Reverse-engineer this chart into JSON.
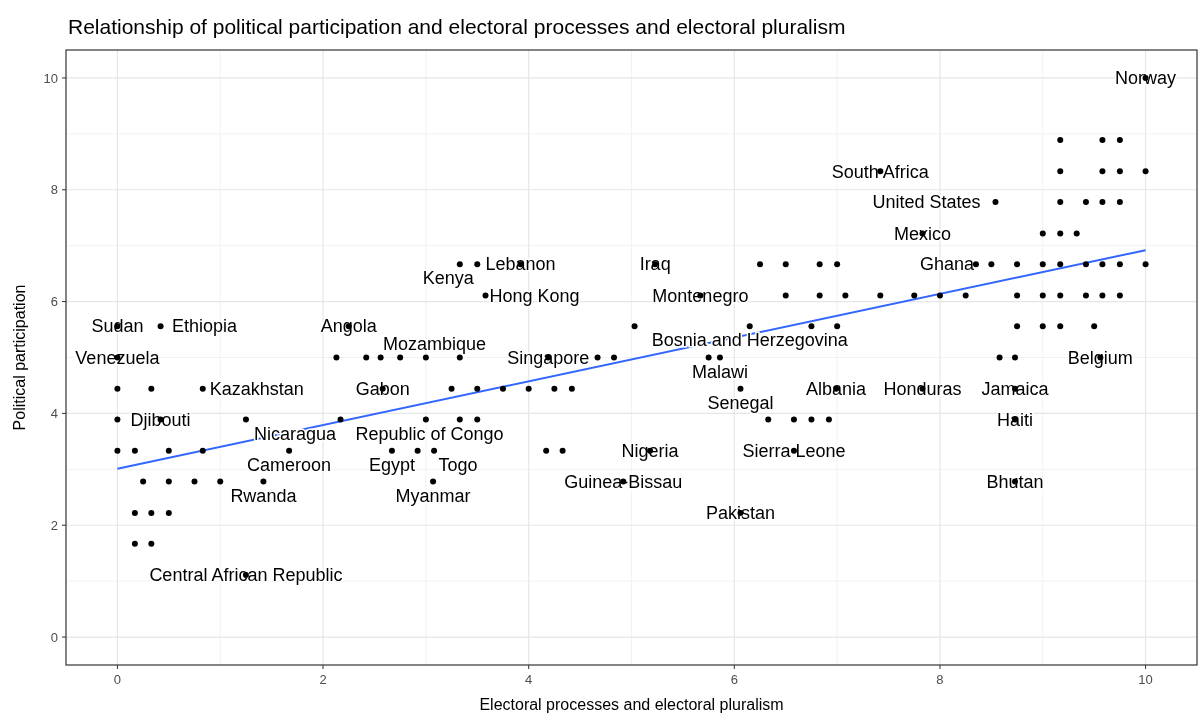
{
  "chart_data": {
    "type": "scatter",
    "title": "Relationship of political participation and electoral processes and electoral pluralism",
    "xlabel": "Electoral processes and electoral pluralism",
    "ylabel": "Political participation",
    "xlim": [
      -0.5,
      10.5
    ],
    "ylim": [
      -0.5,
      10.5
    ],
    "xticks": [
      0,
      2,
      4,
      6,
      8,
      10
    ],
    "yticks": [
      0,
      2,
      4,
      6,
      8,
      10
    ],
    "grid": true,
    "marker": "circle",
    "series": [
      {
        "color": "#000000",
        "x": [
          10,
          7.42,
          7.83,
          8.54,
          8.35,
          6.06,
          5.23,
          3.92,
          3.33,
          3.5,
          3.58,
          5.67,
          6.15,
          5.03,
          4.19,
          5.75,
          5.86,
          6.06,
          6.99,
          7.83,
          8.73,
          8.73,
          8.73,
          6.58,
          5.18,
          4.92,
          8.73,
          9.56,
          0,
          0.42,
          2.25,
          0,
          0.83,
          2.58,
          0,
          0.42,
          1.25,
          2.17,
          1.67,
          1.42,
          1.25,
          2.13,
          2.56,
          2.67,
          3.08,
          3.07,
          9.17,
          9.58,
          9.75,
          9.17,
          9.58,
          9.75,
          10,
          9.17,
          9.42,
          9.58,
          9.75,
          9,
          9.17,
          9.33,
          8.5,
          8.75,
          9,
          9.17,
          9.42,
          9.58,
          9.75,
          10,
          6.5,
          6.83,
          7.08,
          7.42,
          7.75,
          8,
          8.25,
          8.75,
          9,
          9.17,
          9.42,
          9.58,
          9.75,
          6.25,
          6.5,
          6.83,
          7,
          6.75,
          7,
          8.75,
          9,
          9.17,
          9.5,
          8.58,
          2.42,
          2.75,
          3,
          3.33,
          4.67,
          4.83,
          3.25,
          3.5,
          3.75,
          4,
          4.25,
          4.42,
          3,
          3.33,
          3.5,
          2.92,
          4.17,
          4.33,
          6.33,
          6.58,
          6.75,
          6.92,
          0,
          0.33,
          0,
          0.17,
          0.5,
          0.83,
          0.25,
          0.5,
          0.75,
          1,
          0.17,
          0.33,
          0.5,
          0.17,
          0.33
        ],
        "values": [
          10,
          8.33,
          7.22,
          7.78,
          6.67,
          2.22,
          6.67,
          6.67,
          6.67,
          6.67,
          6.11,
          6.11,
          5.56,
          5.56,
          5,
          5,
          5,
          4.44,
          4.44,
          4.44,
          4.44,
          3.89,
          2.78,
          3.33,
          3.33,
          2.78,
          5,
          5,
          5.56,
          5.56,
          5.56,
          5,
          4.44,
          4.44,
          3.89,
          3.89,
          3.89,
          3.89,
          3.33,
          2.78,
          1.11,
          5,
          5,
          3.33,
          3.33,
          2.78,
          8.89,
          8.89,
          8.89,
          8.33,
          8.33,
          8.33,
          8.33,
          7.78,
          7.78,
          7.78,
          7.78,
          7.22,
          7.22,
          7.22,
          6.67,
          6.67,
          6.67,
          6.67,
          6.67,
          6.67,
          6.67,
          6.67,
          6.11,
          6.11,
          6.11,
          6.11,
          6.11,
          6.11,
          6.11,
          6.11,
          6.11,
          6.11,
          6.11,
          6.11,
          6.11,
          6.67,
          6.67,
          6.67,
          6.67,
          5.56,
          5.56,
          5.56,
          5.56,
          5.56,
          5.56,
          5,
          5,
          5,
          5,
          5,
          5,
          5,
          4.44,
          4.44,
          4.44,
          4.44,
          4.44,
          4.44,
          3.89,
          3.89,
          3.89,
          3.33,
          3.33,
          3.33,
          3.89,
          3.89,
          3.89,
          3.89,
          4.44,
          4.44,
          3.33,
          3.33,
          3.33,
          3.33,
          2.78,
          2.78,
          2.78,
          2.78,
          2.22,
          2.22,
          2.22,
          1.67,
          1.67
        ]
      },
      {
        "type": "line",
        "color": "#3366ff",
        "marker": "none",
        "x": [
          0,
          10
        ],
        "values": [
          3.01,
          6.92
        ]
      }
    ],
    "annotations": [
      {
        "text": "Norway",
        "x": 10,
        "y": 10
      },
      {
        "text": "South Africa",
        "x": 7.42,
        "y": 8.33
      },
      {
        "text": "Mexico",
        "x": 7.83,
        "y": 7.22
      },
      {
        "text": "United States",
        "x": 8.54,
        "y": 7.78
      },
      {
        "text": "Ghana",
        "x": 8.35,
        "y": 6.67
      },
      {
        "text": "Pakistan",
        "x": 6.06,
        "y": 2.22
      },
      {
        "text": "Iraq",
        "x": 5.23,
        "y": 6.67
      },
      {
        "text": "Lebanon",
        "x": 3.92,
        "y": 6.67
      },
      {
        "text": "Kenya",
        "x": 3.5,
        "y": 6.67
      },
      {
        "text": "Hong Kong",
        "x": 3.58,
        "y": 6.11
      },
      {
        "text": "Montenegro",
        "x": 5.67,
        "y": 6.11
      },
      {
        "text": "Bosnia and Herzegovina",
        "x": 6.15,
        "y": 5.56
      },
      {
        "text": "Singapore",
        "x": 4.19,
        "y": 5
      },
      {
        "text": "Malawi",
        "x": 5.86,
        "y": 5
      },
      {
        "text": "Senegal",
        "x": 6.06,
        "y": 4.44
      },
      {
        "text": "Albania",
        "x": 6.99,
        "y": 4.44
      },
      {
        "text": "Honduras",
        "x": 7.83,
        "y": 4.44
      },
      {
        "text": "Jamaica",
        "x": 8.73,
        "y": 4.44
      },
      {
        "text": "Haiti",
        "x": 8.73,
        "y": 3.89
      },
      {
        "text": "Bhutan",
        "x": 8.73,
        "y": 2.78
      },
      {
        "text": "Sierra Leone",
        "x": 6.58,
        "y": 3.33
      },
      {
        "text": "Nigeria",
        "x": 5.18,
        "y": 3.33
      },
      {
        "text": "Guinea-Bissau",
        "x": 4.92,
        "y": 2.78
      },
      {
        "text": "Belgium",
        "x": 9.56,
        "y": 5
      },
      {
        "text": "Sudan",
        "x": 0,
        "y": 5.56
      },
      {
        "text": "Ethiopia",
        "x": 0.42,
        "y": 5.56
      },
      {
        "text": "Angola",
        "x": 2.25,
        "y": 5.56
      },
      {
        "text": "Venezuela",
        "x": 0,
        "y": 5
      },
      {
        "text": "Kazakhstan",
        "x": 0.83,
        "y": 4.44
      },
      {
        "text": "Gabon",
        "x": 2.58,
        "y": 4.44
      },
      {
        "text": "Djibouti",
        "x": 0.42,
        "y": 3.89
      },
      {
        "text": "Nicaragua",
        "x": 1.25,
        "y": 3.89
      },
      {
        "text": "Republic of Congo",
        "x": 2.17,
        "y": 3.89
      },
      {
        "text": "Cameroon",
        "x": 1.67,
        "y": 3.33
      },
      {
        "text": "Rwanda",
        "x": 1.42,
        "y": 2.78
      },
      {
        "text": "Central African Republic",
        "x": 1.25,
        "y": 1.11
      },
      {
        "text": "Mozambique",
        "x": 2.56,
        "y": 5
      },
      {
        "text": "Egypt",
        "x": 2.67,
        "y": 3.33
      },
      {
        "text": "Togo",
        "x": 3.08,
        "y": 3.33
      },
      {
        "text": "Myanmar",
        "x": 3.07,
        "y": 2.78
      }
    ]
  }
}
